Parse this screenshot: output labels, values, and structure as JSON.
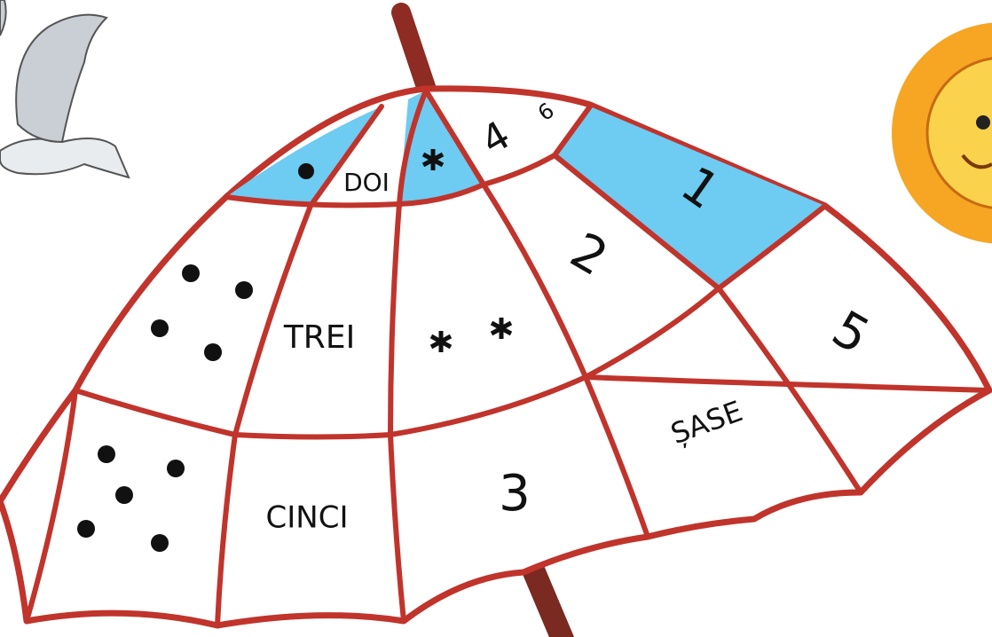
{
  "umbrella": {
    "cells": [
      "DOI",
      "4",
      "6",
      "1",
      "2",
      "TREI",
      "5",
      "ȘASE",
      "CINCI",
      "3"
    ]
  }
}
